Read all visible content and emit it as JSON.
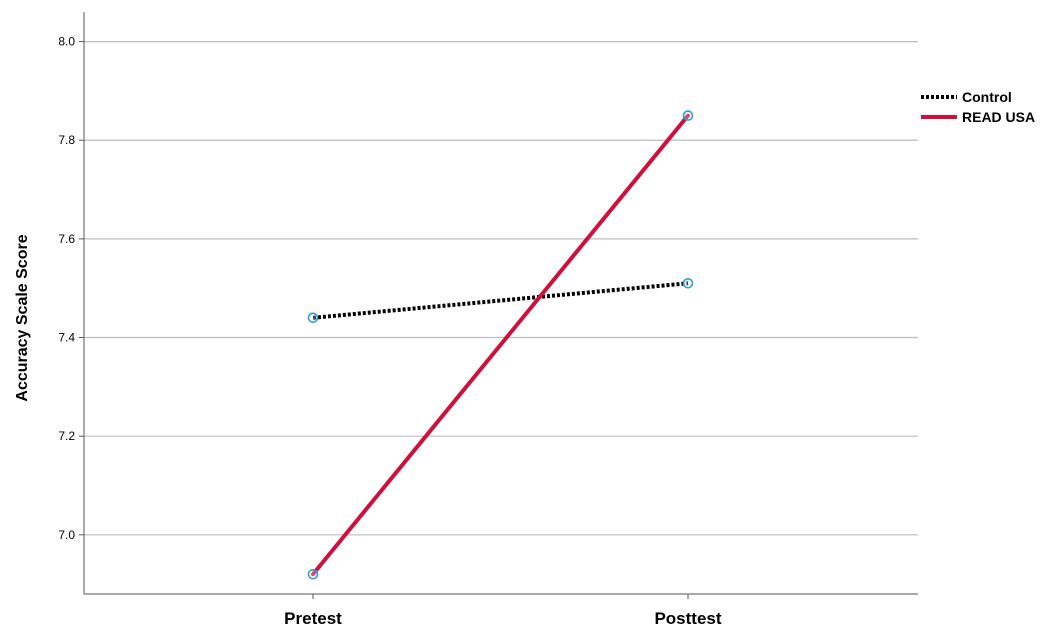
{
  "chart_data": {
    "type": "line",
    "title": "",
    "xlabel": "",
    "ylabel": "Accuracy Scale Score",
    "categories": [
      "Pretest",
      "Posttest"
    ],
    "ylim": [
      6.88,
      8.06
    ],
    "yticks": [
      7.0,
      7.2,
      7.4,
      7.6,
      7.8,
      8.0
    ],
    "ytick_labels": [
      "7.0",
      "7.2",
      "7.4",
      "7.6",
      "7.8",
      "8.0"
    ],
    "grid": "horizontal",
    "legend_position": "right",
    "series": [
      {
        "name": "Control",
        "values": [
          7.44,
          7.51
        ],
        "color": "#000000",
        "style": "dotted"
      },
      {
        "name": "READ USA",
        "values": [
          6.92,
          7.85
        ],
        "color": "#d0103a",
        "style": "solid"
      }
    ],
    "marker_color": "#2a9fd8"
  }
}
